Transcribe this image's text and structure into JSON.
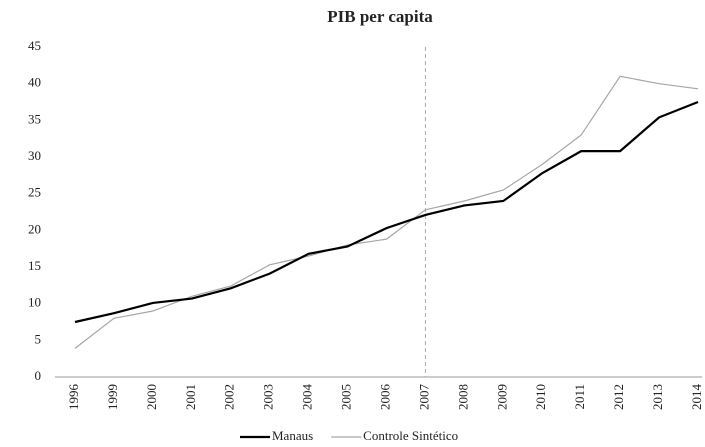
{
  "chart_data": {
    "type": "line",
    "title": "PIB per capita",
    "categories": [
      "1996",
      "1999",
      "2000",
      "2001",
      "2002",
      "2003",
      "2004",
      "2005",
      "2006",
      "2007",
      "2008",
      "2009",
      "2010",
      "2011",
      "2012",
      "2013",
      "2014"
    ],
    "series": [
      {
        "name": "Manaus",
        "color": "#000000",
        "values": [
          7.5,
          8.7,
          10.1,
          10.7,
          12.1,
          14.1,
          16.8,
          17.8,
          20.3,
          22.1,
          23.4,
          24.0,
          27.8,
          30.8,
          30.8,
          35.4,
          37.5
        ]
      },
      {
        "name": "Controle Sintético",
        "color": "#a6a6a6",
        "values": [
          3.9,
          8.0,
          9.0,
          11.0,
          12.4,
          15.3,
          16.5,
          18.0,
          18.8,
          22.8,
          24.0,
          25.5,
          29.0,
          33.0,
          41.0,
          40.0,
          39.3
        ]
      }
    ],
    "reference_line": "2007",
    "ylim": [
      0,
      45
    ],
    "yticks": [
      0,
      5,
      10,
      15,
      20,
      25,
      30,
      35,
      40,
      45
    ],
    "grid": false,
    "legend": "bottom"
  }
}
